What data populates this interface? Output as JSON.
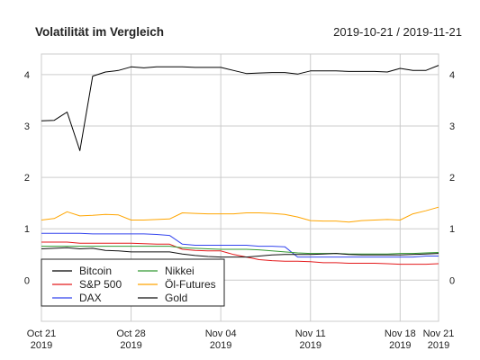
{
  "header": {
    "title": "Volatilität im Vergleich",
    "date_range": "2019-10-21 / 2019-11-21"
  },
  "chart_data": {
    "type": "line",
    "title": "Volatilität im Vergleich",
    "xlabel": "",
    "ylabel": "",
    "grid": true,
    "legend_position": "bottom-left",
    "ylim": [
      -0.8,
      4.4
    ],
    "y_ticks": [
      0,
      1,
      2,
      3,
      4
    ],
    "x_ticks": [
      {
        "date": "2019-10-21",
        "label": "Oct 21\n2019"
      },
      {
        "date": "2019-10-28",
        "label": "Oct 28\n2019"
      },
      {
        "date": "2019-11-04",
        "label": "Nov 04\n2019"
      },
      {
        "date": "2019-11-11",
        "label": "Nov 11\n2019"
      },
      {
        "date": "2019-11-18",
        "label": "Nov 18\n2019"
      },
      {
        "date": "2019-11-21",
        "label": "Nov 21\n2019"
      }
    ],
    "x": [
      "2019-10-21",
      "2019-10-22",
      "2019-10-23",
      "2019-10-24",
      "2019-10-25",
      "2019-10-26",
      "2019-10-27",
      "2019-10-28",
      "2019-10-29",
      "2019-10-30",
      "2019-10-31",
      "2019-11-01",
      "2019-11-02",
      "2019-11-03",
      "2019-11-04",
      "2019-11-05",
      "2019-11-06",
      "2019-11-07",
      "2019-11-08",
      "2019-11-09",
      "2019-11-10",
      "2019-11-11",
      "2019-11-12",
      "2019-11-13",
      "2019-11-14",
      "2019-11-15",
      "2019-11-16",
      "2019-11-17",
      "2019-11-18",
      "2019-11-19",
      "2019-11-20",
      "2019-11-21"
    ],
    "series": [
      {
        "name": "Bitcoin",
        "color": "#000000",
        "values": [
          3.1,
          3.11,
          3.27,
          2.52,
          3.97,
          4.05,
          4.08,
          4.15,
          4.13,
          4.15,
          4.15,
          4.15,
          4.14,
          4.14,
          4.14,
          4.08,
          4.02,
          4.03,
          4.04,
          4.04,
          4.01,
          4.07,
          4.07,
          4.07,
          4.06,
          4.06,
          4.06,
          4.05,
          4.12,
          4.08,
          4.08,
          4.18
        ]
      },
      {
        "name": "S&P 500",
        "color": "#e41a1c",
        "values": [
          0.74,
          0.74,
          0.74,
          0.72,
          0.72,
          0.72,
          0.72,
          0.72,
          0.71,
          0.7,
          0.7,
          0.6,
          0.58,
          0.57,
          0.57,
          0.5,
          0.45,
          0.4,
          0.38,
          0.37,
          0.37,
          0.36,
          0.34,
          0.34,
          0.33,
          0.33,
          0.33,
          0.32,
          0.31,
          0.31,
          0.31,
          0.32
        ]
      },
      {
        "name": "DAX",
        "color": "#3344ee",
        "values": [
          0.91,
          0.91,
          0.91,
          0.91,
          0.9,
          0.9,
          0.9,
          0.9,
          0.9,
          0.89,
          0.87,
          0.7,
          0.68,
          0.68,
          0.68,
          0.68,
          0.68,
          0.66,
          0.66,
          0.65,
          0.45,
          0.45,
          0.45,
          0.45,
          0.45,
          0.45,
          0.45,
          0.45,
          0.45,
          0.45,
          0.47,
          0.47
        ]
      },
      {
        "name": "Nikkei",
        "color": "#339933",
        "values": [
          0.66,
          0.66,
          0.66,
          0.66,
          0.66,
          0.66,
          0.66,
          0.66,
          0.66,
          0.66,
          0.66,
          0.63,
          0.62,
          0.61,
          0.6,
          0.6,
          0.6,
          0.59,
          0.57,
          0.55,
          0.53,
          0.52,
          0.52,
          0.52,
          0.51,
          0.51,
          0.51,
          0.51,
          0.52,
          0.52,
          0.53,
          0.54
        ]
      },
      {
        "name": "Öl-Futures",
        "color": "#ffa500",
        "values": [
          1.17,
          1.2,
          1.33,
          1.25,
          1.26,
          1.28,
          1.27,
          1.17,
          1.17,
          1.18,
          1.19,
          1.31,
          1.3,
          1.29,
          1.29,
          1.29,
          1.31,
          1.31,
          1.3,
          1.28,
          1.23,
          1.16,
          1.15,
          1.15,
          1.13,
          1.16,
          1.17,
          1.18,
          1.17,
          1.29,
          1.35,
          1.42
        ]
      },
      {
        "name": "Gold",
        "color": "#111111",
        "values": [
          0.61,
          0.62,
          0.63,
          0.61,
          0.62,
          0.58,
          0.57,
          0.55,
          0.55,
          0.55,
          0.55,
          0.51,
          0.48,
          0.46,
          0.45,
          0.45,
          0.45,
          0.47,
          0.49,
          0.5,
          0.5,
          0.5,
          0.51,
          0.52,
          0.5,
          0.49,
          0.49,
          0.49,
          0.49,
          0.5,
          0.51,
          0.52
        ]
      }
    ]
  }
}
